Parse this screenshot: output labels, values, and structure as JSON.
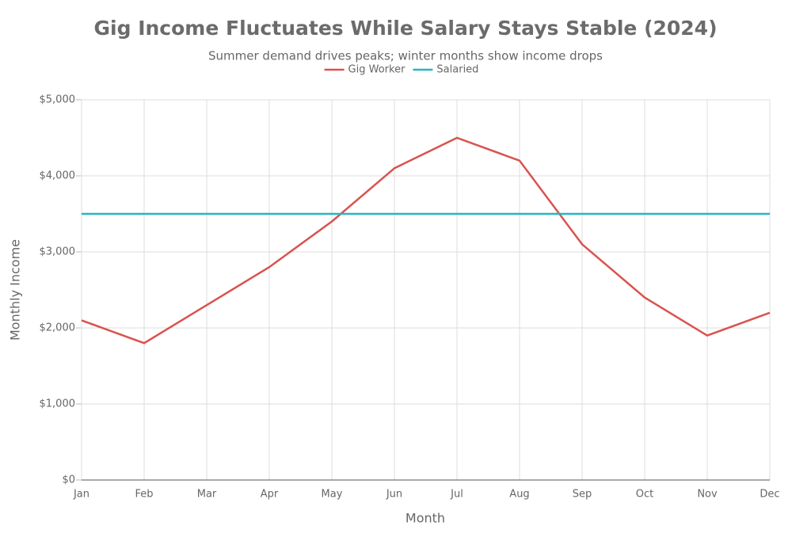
{
  "chart_data": {
    "type": "line",
    "title": "Gig Income Fluctuates While Salary Stays Stable (2024)",
    "subtitle": "Summer demand drives peaks; winter months show income drops",
    "x_label": "Month",
    "y_label": "Monthly Income",
    "categories": [
      "Jan",
      "Feb",
      "Mar",
      "Apr",
      "May",
      "Jun",
      "Jul",
      "Aug",
      "Sep",
      "Oct",
      "Nov",
      "Dec"
    ],
    "series": [
      {
        "name": "Gig Worker",
        "color": "#d9534f",
        "values": [
          2100,
          1800,
          2300,
          2800,
          3400,
          4100,
          4500,
          4200,
          3100,
          2400,
          1900,
          2200
        ]
      },
      {
        "name": "Salaried",
        "color": "#26b5c6",
        "values": [
          3500,
          3500,
          3500,
          3500,
          3500,
          3500,
          3500,
          3500,
          3500,
          3500,
          3500,
          3500
        ]
      }
    ],
    "ylim": [
      0,
      5000
    ],
    "yticks": [
      {
        "value": 0,
        "label": "$0"
      },
      {
        "value": 1000,
        "label": "$1,000"
      },
      {
        "value": 2000,
        "label": "$2,000"
      },
      {
        "value": 3000,
        "label": "$3,000"
      },
      {
        "value": 4000,
        "label": "$4,000"
      },
      {
        "value": 5000,
        "label": "$5,000"
      }
    ],
    "grid": true,
    "legend": "top"
  }
}
